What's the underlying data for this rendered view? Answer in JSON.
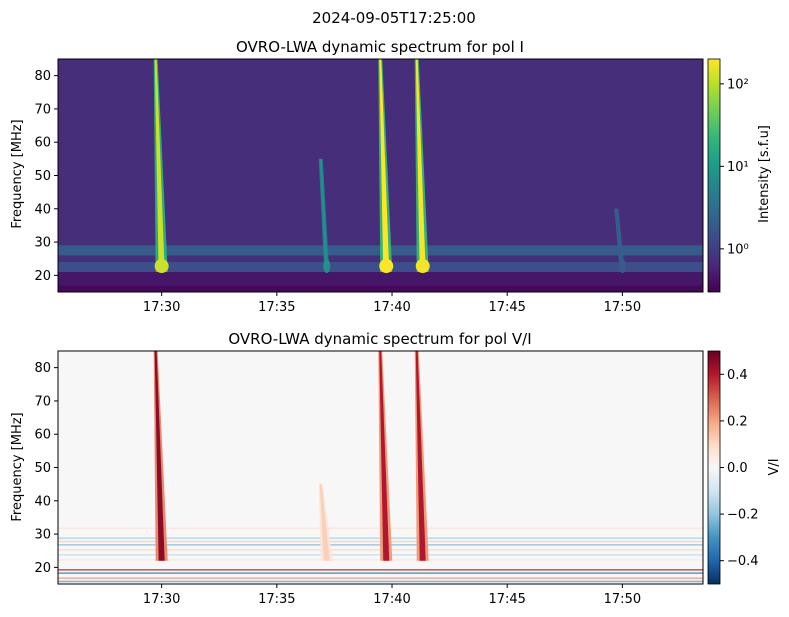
{
  "suptitle": "2024-09-05T17:25:00",
  "chart_data": [
    {
      "type": "heatmap",
      "title": "OVRO-LWA dynamic spectrum for pol I",
      "ylabel": "Frequency [MHz]",
      "xlabel": "",
      "ylim": [
        15,
        85
      ],
      "yticks": [
        20,
        30,
        40,
        50,
        60,
        70,
        80
      ],
      "xlim": [
        "17:25:30",
        "17:53:30"
      ],
      "xticks": [
        "17:30",
        "17:35",
        "17:40",
        "17:45",
        "17:50"
      ],
      "colormap": "viridis",
      "colorbar": {
        "label": "Intensity [s.f.u]",
        "scale": "log",
        "range": [
          0.3,
          200
        ],
        "ticks": [
          {
            "value": 1,
            "label": "10⁰"
          },
          {
            "value": 10,
            "label": "10¹"
          },
          {
            "value": 100,
            "label": "10²"
          }
        ]
      },
      "background_level": 0.7,
      "low_band_levels": [
        {
          "freq_range": [
            15,
            17
          ],
          "level": 0.35
        },
        {
          "freq_range": [
            17,
            21
          ],
          "level": 0.45
        },
        {
          "freq_range": [
            21,
            24
          ],
          "level": 1.5
        },
        {
          "freq_range": [
            26,
            29
          ],
          "level": 2.0
        }
      ],
      "bursts": [
        {
          "time": "17:30:00",
          "freq_range": [
            21,
            85
          ],
          "peak_level": 120
        },
        {
          "time": "17:37:10",
          "freq_range": [
            21,
            55
          ],
          "peak_level": 8
        },
        {
          "time": "17:39:45",
          "freq_range": [
            21,
            85
          ],
          "peak_level": 200
        },
        {
          "time": "17:41:20",
          "freq_range": [
            21,
            85
          ],
          "peak_level": 180
        },
        {
          "time": "17:50:00",
          "freq_range": [
            21,
            40
          ],
          "peak_level": 2
        }
      ]
    },
    {
      "type": "heatmap",
      "title": "OVRO-LWA dynamic spectrum for pol V/I",
      "ylabel": "Frequency [MHz]",
      "xlabel": "",
      "ylim": [
        15,
        85
      ],
      "yticks": [
        20,
        30,
        40,
        50,
        60,
        70,
        80
      ],
      "xlim": [
        "17:25:30",
        "17:53:30"
      ],
      "xticks": [
        "17:30",
        "17:35",
        "17:40",
        "17:45",
        "17:50"
      ],
      "colormap": "RdBu_r",
      "colorbar": {
        "label": "V/I",
        "scale": "linear",
        "range": [
          -0.5,
          0.5
        ],
        "ticks": [
          {
            "value": 0.4,
            "label": "0.4"
          },
          {
            "value": 0.2,
            "label": "0.2"
          },
          {
            "value": 0.0,
            "label": "0.0"
          },
          {
            "value": -0.2,
            "label": "−0.2"
          },
          {
            "value": -0.4,
            "label": "−0.4"
          }
        ]
      },
      "bursts": [
        {
          "time": "17:30:00",
          "freq_range": [
            22,
            85
          ],
          "peak_value": 0.45
        },
        {
          "time": "17:37:10",
          "freq_range": [
            22,
            45
          ],
          "peak_value": 0.12
        },
        {
          "time": "17:39:45",
          "freq_range": [
            22,
            85
          ],
          "peak_value": 0.4
        },
        {
          "time": "17:41:20",
          "freq_range": [
            22,
            85
          ],
          "peak_value": 0.4
        }
      ]
    }
  ]
}
